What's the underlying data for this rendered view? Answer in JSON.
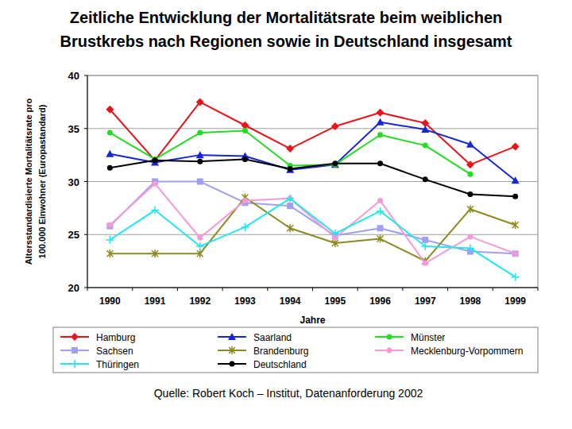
{
  "chart_data": {
    "type": "line",
    "title": [
      "Zeitliche Entwicklung der Mortalitätsrate beim weiblichen",
      "Brustkrebs nach Regionen sowie in Deutschland insgesamt"
    ],
    "ylabel": [
      "Altersstandardisierte Mortalitätsrate pro",
      "100.000 Einwohner (Europastandard)"
    ],
    "xlabel": "Jahre",
    "annotations": [
      "Quelle: Robert Koch – Institut, Datenanforderung 2002"
    ],
    "categories": [
      "1990",
      "1991",
      "1992",
      "1993",
      "1994",
      "1995",
      "1996",
      "1997",
      "1998",
      "1999"
    ],
    "ylim": [
      20,
      40
    ],
    "yticks": [
      20,
      25,
      30,
      35,
      40
    ],
    "grid": true,
    "legend": "bottom",
    "series": [
      {
        "name": "Hamburg",
        "color": "#e8141b",
        "marker": "diamond",
        "values": [
          36.8,
          32.0,
          37.5,
          35.3,
          33.1,
          35.2,
          36.5,
          35.5,
          31.6,
          33.3
        ]
      },
      {
        "name": "Saarland",
        "color": "#1525d8",
        "marker": "triangle",
        "values": [
          32.6,
          31.8,
          32.5,
          32.4,
          31.1,
          31.6,
          35.6,
          34.9,
          33.5,
          30.1
        ]
      },
      {
        "name": "Münster",
        "color": "#22dd22",
        "marker": "circle",
        "values": [
          34.6,
          32.1,
          34.6,
          34.8,
          31.5,
          31.6,
          34.4,
          33.4,
          30.7,
          null
        ]
      },
      {
        "name": "Sachsen",
        "color": "#a0a0f0",
        "marker": "square",
        "values": [
          25.8,
          30.0,
          30.0,
          28.0,
          27.7,
          24.9,
          25.6,
          24.5,
          23.4,
          23.2
        ]
      },
      {
        "name": "Brandenburg",
        "color": "#8b8a1e",
        "marker": "x",
        "values": [
          23.2,
          23.2,
          23.2,
          28.5,
          25.6,
          24.2,
          24.6,
          22.5,
          27.4,
          25.9
        ]
      },
      {
        "name": "Mecklenburg-Vorpommern",
        "color": "#f59ad8",
        "marker": "circle",
        "values": [
          25.9,
          29.8,
          24.7,
          28.2,
          28.4,
          24.7,
          28.2,
          22.3,
          24.8,
          23.2
        ]
      },
      {
        "name": "Thüringen",
        "color": "#22e6f0",
        "marker": "plus",
        "values": [
          24.5,
          27.3,
          23.9,
          25.7,
          28.4,
          25.1,
          27.2,
          23.9,
          23.7,
          21.0
        ]
      },
      {
        "name": "Deutschland",
        "color": "#000000",
        "marker": "circle",
        "values": [
          31.3,
          32.0,
          31.9,
          32.1,
          31.2,
          31.7,
          31.7,
          30.2,
          28.8,
          28.6
        ]
      }
    ]
  }
}
